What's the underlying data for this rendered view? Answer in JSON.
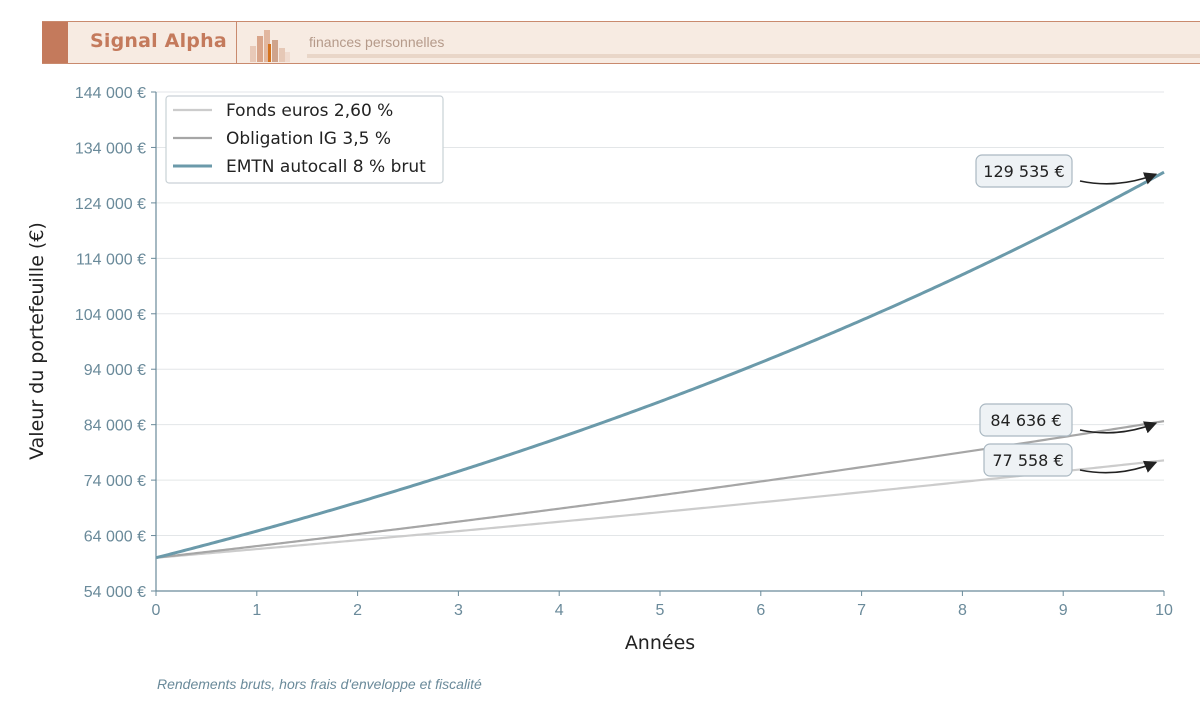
{
  "header": {
    "brand": "Signal Alpha",
    "tagline": "finances personnelles",
    "accent_color": "#c47a5c",
    "logo_icon": "bar-chart-logo-icon"
  },
  "chart_data": {
    "type": "line",
    "xlabel": "Années",
    "ylabel": "Valeur du portefeuille (€)",
    "x": [
      0,
      1,
      2,
      3,
      4,
      5,
      6,
      7,
      8,
      9,
      10
    ],
    "xlim": [
      0,
      10
    ],
    "ylim": [
      54000,
      144000
    ],
    "yticks": [
      54000,
      64000,
      74000,
      84000,
      94000,
      104000,
      114000,
      124000,
      134000,
      144000
    ],
    "ytick_labels": [
      "54 000 €",
      "64 000 €",
      "74 000 €",
      "84 000 €",
      "94 000 €",
      "104 000 €",
      "114 000 €",
      "124 000 €",
      "134 000 €",
      "144 000 €"
    ],
    "xtick_labels": [
      "0",
      "1",
      "2",
      "3",
      "4",
      "5",
      "6",
      "7",
      "8",
      "9",
      "10"
    ],
    "grid": "horizontal",
    "legend_position": "top-left",
    "series": [
      {
        "name": "Fonds euros 2,60 %",
        "color": "#cccccc",
        "values": [
          60000,
          61560,
          63161,
          64803,
          66488,
          68216,
          69990,
          71810,
          73677,
          75592,
          77558
        ]
      },
      {
        "name": "Obligation IG 3,5 %",
        "color": "#a6a6a6",
        "values": [
          60000,
          62100,
          64274,
          66523,
          68851,
          71261,
          73755,
          76337,
          79009,
          81774,
          84636
        ]
      },
      {
        "name": "EMTN autocall 8 % brut",
        "color": "#6b9aaa",
        "values": [
          60000,
          64800,
          69984,
          75583,
          81629,
          88160,
          95212,
          102829,
          111056,
          119940,
          129535
        ]
      }
    ],
    "annotations": [
      {
        "text": "129 535 €",
        "x": 10,
        "y": 129535
      },
      {
        "text": "84 636 €",
        "x": 10,
        "y": 84636
      },
      {
        "text": "77 558 €",
        "x": 10,
        "y": 77558
      }
    ]
  },
  "footnote": "Rendements bruts, hors frais d'enveloppe et fiscalité"
}
